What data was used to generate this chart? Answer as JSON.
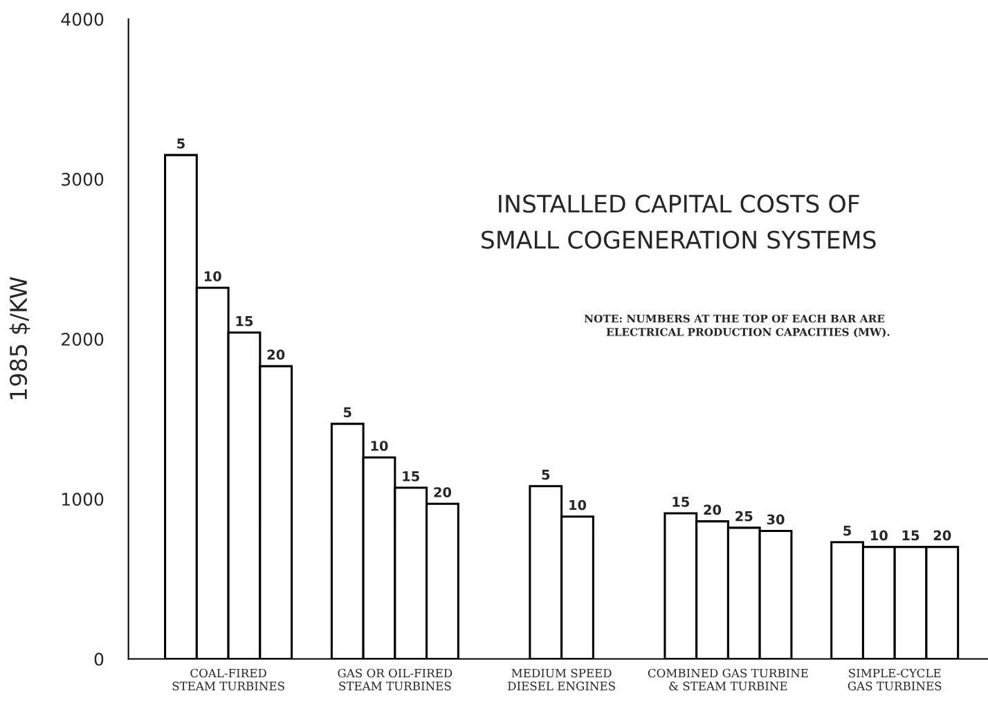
{
  "chart_data": {
    "type": "bar",
    "title": "INSTALLED CAPITAL COSTS OF\nSMALL COGENERATION SYSTEMS",
    "ylabel": "1985 $/KW",
    "annotations": [
      "NOTE: NUMBERS AT THE TOP OF EACH BAR ARE\n      ELECTRICAL PRODUCTION CAPACITIES (MW).",
      "5",
      "10",
      "15",
      "20",
      "5",
      "10",
      "15",
      "20",
      "5",
      "10",
      "15",
      "20",
      "25",
      "30",
      "5",
      "10",
      "15",
      "20"
    ],
    "categories": [
      "COAL-FIRED\nSTEAM TURBINES",
      "GAS OR OIL-FIRED\nSTEAM TURBINES",
      "MEDIUM SPEED\nDIESEL ENGINES",
      "COMBINED GAS TURBINE\n& STEAM TURBINE",
      "SIMPLE-CYCLE\nGAS TURBINES"
    ],
    "series": [
      {
        "color": "#ffffff",
        "values": [
          3150,
          1470,
          1080,
          910,
          730
        ]
      },
      {
        "color": "#ffffff",
        "values": [
          2320,
          1260,
          890,
          860,
          700
        ]
      },
      {
        "color": "#ffffff",
        "values": [
          2040,
          1070,
          null,
          820,
          700
        ]
      },
      {
        "color": "#ffffff",
        "values": [
          1830,
          970,
          null,
          800,
          700
        ]
      }
    ],
    "ylim": [
      0,
      4000
    ],
    "yticks": [
      0,
      1000,
      2000,
      3000,
      4000
    ],
    "grid": false
  }
}
